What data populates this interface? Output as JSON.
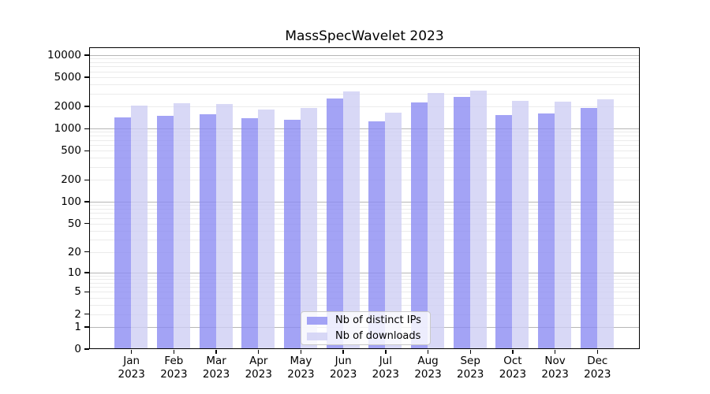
{
  "chart_data": {
    "type": "bar",
    "title": "MassSpecWavelet 2023",
    "categories": [
      "Jan 2023",
      "Feb 2023",
      "Mar 2023",
      "Apr 2023",
      "May 2023",
      "Jun 2023",
      "Jul 2023",
      "Aug 2023",
      "Sep 2023",
      "Oct 2023",
      "Nov 2023",
      "Dec 2023"
    ],
    "series": [
      {
        "name": "Nb of distinct IPs",
        "color": "#a8a8f0",
        "fill_rgba": "rgba(140,140,242,0.8)",
        "values": [
          1411,
          1504,
          1568,
          1386,
          1330,
          2571,
          1246,
          2272,
          2681,
          1541,
          1607,
          1925
        ]
      },
      {
        "name": "Nb of downloads",
        "color": "#d8d8f6",
        "fill_rgba": "rgba(206,206,244,0.8)",
        "values": [
          2044,
          2201,
          2179,
          1832,
          1928,
          3211,
          1661,
          3079,
          3290,
          2368,
          2311,
          2508
        ]
      }
    ],
    "xlabel": "",
    "ylabel": "",
    "yscale": "log1p",
    "ylim": [
      0,
      10000
    ],
    "yticks": [
      0,
      1,
      2,
      5,
      10,
      20,
      50,
      100,
      200,
      500,
      1000,
      2000,
      5000,
      10000
    ],
    "grid": "on",
    "gridline_major_color": "#b6b6b6",
    "gridline_minor_color": "#ebebeb",
    "legend_position": "bottom-center-inside",
    "background_color": "#ffffff"
  }
}
